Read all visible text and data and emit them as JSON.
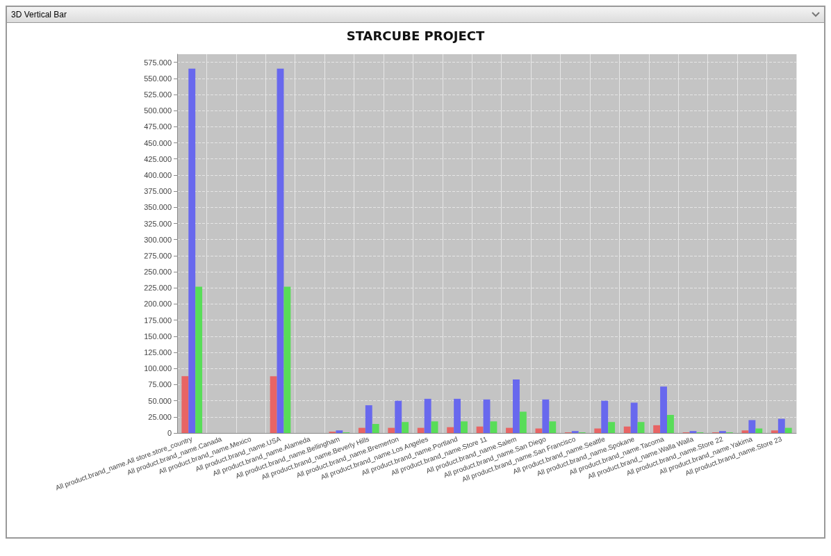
{
  "chart_data": {
    "type": "bar",
    "title": "STARCUBE PROJECT",
    "annotations": [
      "3D Vertical Bar"
    ],
    "categories": [
      "All product.brand_name.All store.store_country",
      "All product.brand_name.Canada",
      "All product.brand_name.Mexico",
      "All product.brand_name.USA",
      "All product.brand_name.Alameda",
      "All product.brand_name.Bellingham",
      "All product.brand_name.Beverly Hills",
      "All product.brand_name.Bremerton",
      "All product.brand_name.Los Angeles",
      "All product.brand_name.Portland",
      "All product.brand_name.Store 11",
      "All product.brand_name.Salem",
      "All product.brand_name.San Diego",
      "All product.brand_name.San Francisco",
      "All product.brand_name.Seattle",
      "All product.brand_name.Spokane",
      "All product.brand_name.Tacoma",
      "All product.brand_name.Walla Walla",
      "All product.brand_name.Store 22",
      "All product.brand_name.Yakima",
      "All product.brand_name.Store 23"
    ],
    "series": [
      {
        "color": "#e86464",
        "values": [
          88000,
          0,
          0,
          88000,
          0,
          2000,
          8000,
          8000,
          8000,
          9000,
          10000,
          8000,
          7000,
          1000,
          7000,
          10000,
          12000,
          1000,
          1000,
          4000,
          4000
        ]
      },
      {
        "color": "#6868ee",
        "values": [
          565000,
          0,
          0,
          565000,
          0,
          4000,
          43000,
          50000,
          53000,
          53000,
          52000,
          83000,
          52000,
          3000,
          50000,
          47000,
          72000,
          3000,
          3000,
          20000,
          22000
        ]
      },
      {
        "color": "#58dd58",
        "values": [
          227000,
          0,
          0,
          227000,
          0,
          1000,
          14000,
          17000,
          18000,
          18000,
          18000,
          33000,
          18000,
          1000,
          17000,
          17000,
          28000,
          1000,
          1000,
          7000,
          8000
        ]
      }
    ],
    "ylim": [
      0,
      587500
    ],
    "yticks": [
      0,
      {
        "value": 25000,
        "label": "25.000"
      },
      {
        "value": 50000,
        "label": "50.000"
      },
      {
        "value": 75000,
        "label": "75.000"
      },
      {
        "value": 100000,
        "label": "100.000"
      },
      {
        "value": 125000,
        "label": "125.000"
      },
      {
        "value": 150000,
        "label": "150.000"
      },
      {
        "value": 175000,
        "label": "175.000"
      },
      {
        "value": 200000,
        "label": "200.000"
      },
      {
        "value": 225000,
        "label": "225.000"
      },
      {
        "value": 250000,
        "label": "250.000"
      },
      {
        "value": 275000,
        "label": "275.000"
      },
      {
        "value": 300000,
        "label": "300.000"
      },
      {
        "value": 325000,
        "label": "325.000"
      },
      {
        "value": 350000,
        "label": "350.000"
      },
      {
        "value": 375000,
        "label": "375.000"
      },
      {
        "value": 400000,
        "label": "400.000"
      },
      {
        "value": 425000,
        "label": "425.000"
      },
      {
        "value": 450000,
        "label": "450.000"
      },
      {
        "value": 475000,
        "label": "475.000"
      },
      {
        "value": 500000,
        "label": "500.000"
      },
      {
        "value": 525000,
        "label": "525.000"
      },
      {
        "value": 550000,
        "label": "550.000"
      },
      {
        "value": 575000,
        "label": "575.000"
      }
    ],
    "grid": true
  }
}
